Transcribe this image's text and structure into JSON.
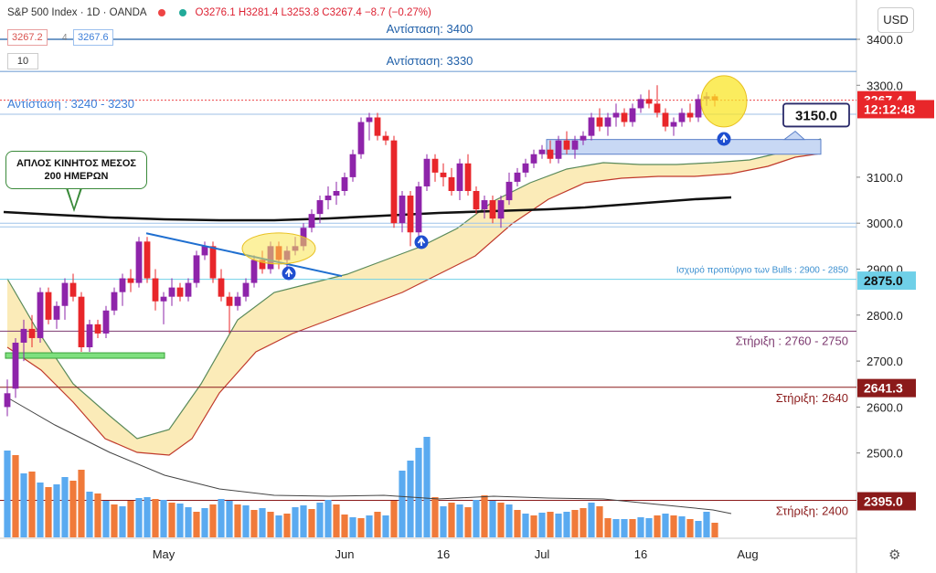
{
  "header": {
    "symbol": "S&P 500 Index · 1D · OANDA",
    "ohlc": "O3276.1  H3281.4  L3253.8  C3267.4  −8.7 (−0.27%)",
    "bid": "3267.2",
    "ask": "3267.6",
    "volume_setting": "10",
    "currency": "USD",
    "settings_icon": "gear-icon"
  },
  "chart_data": {
    "type": "candlestick",
    "timeframe": "1D",
    "ylim": [
      2370,
      3450
    ],
    "y_ticks": [
      {
        "value": 3400,
        "label": "3400.0"
      },
      {
        "value": 3300,
        "label": "3300.0"
      },
      {
        "value": 3100,
        "label": "3100.0"
      },
      {
        "value": 3000,
        "label": "3000.0"
      },
      {
        "value": 2900,
        "label": "2900.0"
      },
      {
        "value": 2800,
        "label": "2800.0"
      },
      {
        "value": 2700,
        "label": "2700.0"
      },
      {
        "value": 2600,
        "label": "2600.0"
      },
      {
        "value": 2500,
        "label": "2500.0"
      }
    ],
    "x_ticks": [
      {
        "bar": 19,
        "label": "May"
      },
      {
        "bar": 41,
        "label": "Jun"
      },
      {
        "bar": 53,
        "label": "16"
      },
      {
        "bar": 65,
        "label": "Jul"
      },
      {
        "bar": 77,
        "label": "16"
      },
      {
        "bar": 90,
        "label": "Aug"
      }
    ],
    "candles": [
      [
        2600,
        2660,
        2580,
        2630
      ],
      [
        2640,
        2750,
        2620,
        2740
      ],
      [
        2740,
        2790,
        2700,
        2770
      ],
      [
        2770,
        2800,
        2730,
        2750
      ],
      [
        2750,
        2860,
        2740,
        2850
      ],
      [
        2850,
        2860,
        2780,
        2790
      ],
      [
        2790,
        2830,
        2770,
        2820
      ],
      [
        2820,
        2880,
        2790,
        2870
      ],
      [
        2870,
        2890,
        2830,
        2840
      ],
      [
        2840,
        2850,
        2720,
        2730
      ],
      [
        2730,
        2790,
        2720,
        2780
      ],
      [
        2780,
        2790,
        2750,
        2760
      ],
      [
        2760,
        2820,
        2750,
        2810
      ],
      [
        2810,
        2860,
        2800,
        2850
      ],
      [
        2850,
        2890,
        2820,
        2880
      ],
      [
        2880,
        2900,
        2850,
        2870
      ],
      [
        2870,
        2970,
        2860,
        2960
      ],
      [
        2960,
        2970,
        2870,
        2880
      ],
      [
        2880,
        2900,
        2810,
        2830
      ],
      [
        2830,
        2850,
        2780,
        2840
      ],
      [
        2840,
        2880,
        2820,
        2860
      ],
      [
        2860,
        2870,
        2830,
        2840
      ],
      [
        2840,
        2880,
        2830,
        2870
      ],
      [
        2870,
        2940,
        2860,
        2930
      ],
      [
        2930,
        2960,
        2920,
        2950
      ],
      [
        2950,
        2960,
        2870,
        2880
      ],
      [
        2880,
        2900,
        2830,
        2840
      ],
      [
        2840,
        2850,
        2760,
        2820
      ],
      [
        2820,
        2850,
        2810,
        2840
      ],
      [
        2840,
        2880,
        2830,
        2870
      ],
      [
        2870,
        2930,
        2860,
        2920
      ],
      [
        2920,
        2940,
        2890,
        2900
      ],
      [
        2900,
        2960,
        2890,
        2950
      ],
      [
        2950,
        2960,
        2900,
        2920
      ],
      [
        2920,
        2950,
        2900,
        2940
      ],
      [
        2940,
        2970,
        2930,
        2950
      ],
      [
        2950,
        3000,
        2940,
        2990
      ],
      [
        2990,
        3030,
        2980,
        3020
      ],
      [
        3020,
        3060,
        3000,
        3050
      ],
      [
        3050,
        3080,
        3030,
        3060
      ],
      [
        3060,
        3090,
        3040,
        3070
      ],
      [
        3070,
        3110,
        3060,
        3100
      ],
      [
        3100,
        3160,
        3090,
        3150
      ],
      [
        3150,
        3230,
        3140,
        3220
      ],
      [
        3220,
        3240,
        3180,
        3230
      ],
      [
        3230,
        3240,
        3180,
        3190
      ],
      [
        3190,
        3200,
        3170,
        3180
      ],
      [
        3180,
        3190,
        2990,
        3000
      ],
      [
        3000,
        3070,
        2980,
        3060
      ],
      [
        3060,
        3070,
        2950,
        2980
      ],
      [
        2980,
        3090,
        2970,
        3080
      ],
      [
        3080,
        3150,
        3070,
        3140
      ],
      [
        3140,
        3150,
        3090,
        3110
      ],
      [
        3110,
        3130,
        3080,
        3100
      ],
      [
        3100,
        3120,
        3060,
        3070
      ],
      [
        3070,
        3140,
        3050,
        3130
      ],
      [
        3130,
        3150,
        3060,
        3070
      ],
      [
        3070,
        3080,
        3020,
        3030
      ],
      [
        3030,
        3060,
        3010,
        3050
      ],
      [
        3050,
        3060,
        3000,
        3010
      ],
      [
        3010,
        3060,
        2990,
        3050
      ],
      [
        3050,
        3110,
        3040,
        3090
      ],
      [
        3090,
        3120,
        3080,
        3110
      ],
      [
        3110,
        3140,
        3100,
        3130
      ],
      [
        3130,
        3160,
        3120,
        3150
      ],
      [
        3150,
        3170,
        3140,
        3160
      ],
      [
        3160,
        3180,
        3130,
        3140
      ],
      [
        3140,
        3190,
        3130,
        3180
      ],
      [
        3180,
        3200,
        3150,
        3160
      ],
      [
        3160,
        3190,
        3140,
        3180
      ],
      [
        3180,
        3200,
        3170,
        3190
      ],
      [
        3190,
        3240,
        3180,
        3230
      ],
      [
        3230,
        3250,
        3200,
        3210
      ],
      [
        3210,
        3240,
        3190,
        3230
      ],
      [
        3230,
        3260,
        3210,
        3240
      ],
      [
        3240,
        3250,
        3210,
        3220
      ],
      [
        3220,
        3260,
        3210,
        3250
      ],
      [
        3250,
        3280,
        3240,
        3270
      ],
      [
        3270,
        3290,
        3250,
        3260
      ],
      [
        3260,
        3300,
        3230,
        3240
      ],
      [
        3240,
        3250,
        3200,
        3210
      ],
      [
        3210,
        3230,
        3190,
        3220
      ],
      [
        3220,
        3250,
        3210,
        3240
      ],
      [
        3240,
        3260,
        3220,
        3230
      ],
      [
        3230,
        3280,
        3220,
        3270
      ],
      [
        3270,
        3285,
        3255,
        3276
      ],
      [
        3276,
        3281,
        3254,
        3267
      ]
    ],
    "volumes": [
      [
        95,
        1
      ],
      [
        90,
        0
      ],
      [
        70,
        1
      ],
      [
        72,
        0
      ],
      [
        60,
        1
      ],
      [
        55,
        0
      ],
      [
        58,
        1
      ],
      [
        66,
        1
      ],
      [
        62,
        0
      ],
      [
        74,
        0
      ],
      [
        50,
        1
      ],
      [
        48,
        0
      ],
      [
        40,
        1
      ],
      [
        36,
        0
      ],
      [
        34,
        1
      ],
      [
        40,
        0
      ],
      [
        43,
        1
      ],
      [
        44,
        1
      ],
      [
        42,
        0
      ],
      [
        41,
        1
      ],
      [
        38,
        0
      ],
      [
        37,
        1
      ],
      [
        33,
        1
      ],
      [
        28,
        0
      ],
      [
        32,
        1
      ],
      [
        36,
        0
      ],
      [
        42,
        1
      ],
      [
        40,
        1
      ],
      [
        36,
        0
      ],
      [
        35,
        1
      ],
      [
        30,
        0
      ],
      [
        32,
        1
      ],
      [
        28,
        0
      ],
      [
        24,
        1
      ],
      [
        26,
        0
      ],
      [
        33,
        1
      ],
      [
        35,
        1
      ],
      [
        31,
        0
      ],
      [
        38,
        1
      ],
      [
        41,
        1
      ],
      [
        36,
        0
      ],
      [
        25,
        0
      ],
      [
        22,
        1
      ],
      [
        21,
        0
      ],
      [
        24,
        1
      ],
      [
        28,
        0
      ],
      [
        24,
        1
      ],
      [
        40,
        0
      ],
      [
        73,
        1
      ],
      [
        84,
        1
      ],
      [
        98,
        1
      ],
      [
        110,
        1
      ],
      [
        44,
        0
      ],
      [
        34,
        1
      ],
      [
        38,
        0
      ],
      [
        36,
        1
      ],
      [
        33,
        0
      ],
      [
        41,
        1
      ],
      [
        46,
        0
      ],
      [
        40,
        1
      ],
      [
        38,
        0
      ],
      [
        36,
        1
      ],
      [
        30,
        0
      ],
      [
        26,
        1
      ],
      [
        24,
        0
      ],
      [
        27,
        1
      ],
      [
        28,
        0
      ],
      [
        26,
        1
      ],
      [
        28,
        1
      ],
      [
        30,
        0
      ],
      [
        32,
        0
      ],
      [
        38,
        1
      ],
      [
        34,
        0
      ],
      [
        21,
        0
      ],
      [
        20,
        1
      ],
      [
        20,
        1
      ],
      [
        20,
        0
      ],
      [
        22,
        1
      ],
      [
        21,
        1
      ],
      [
        24,
        0
      ],
      [
        26,
        1
      ],
      [
        24,
        0
      ],
      [
        23,
        1
      ],
      [
        20,
        0
      ],
      [
        18,
        1
      ],
      [
        28,
        1
      ],
      [
        16,
        0
      ]
    ],
    "horizontal_levels": [
      {
        "value": 3400,
        "label": "Αντίσταση: 3400"
      },
      {
        "value": 3330,
        "label": "Αντίσταση: 3330"
      },
      {
        "value": 3237,
        "label": "Αντίσταση : 3240 - 3230"
      },
      {
        "value": 2878,
        "label": "Ισχυρό προπύργιο των Bulls : 2900 - 2850"
      },
      {
        "value": 2765,
        "label": "Στήριξη : 2760 - 2750"
      },
      {
        "value": 2643,
        "label": "Στήριξη: 2640"
      },
      {
        "value": 2397,
        "label": "Στήριξη: 2400"
      }
    ],
    "axis_labels": [
      {
        "value": 3267.4,
        "label": "3267.4",
        "color": "#e8262a"
      },
      {
        "value": 3248,
        "label": "12:12:48",
        "color": "#e8262a"
      },
      {
        "value": 2875,
        "label": "2875.0",
        "color": "#6fd0e8"
      },
      {
        "value": 2641.3,
        "label": "2641.3",
        "color": "#8b1a1a"
      },
      {
        "value": 2395,
        "label": "2395.0",
        "color": "#8b1a1a"
      }
    ],
    "annotations": {
      "ma_callout": [
        "ΑΠΛΟΣ ΚΙΝΗΤΟΣ ΜΕΣΟΣ",
        "200 ΗΜΕΡΩΝ"
      ],
      "zone_label": "3150.0"
    },
    "colors": {
      "up": "#8e24aa",
      "down": "#e8262a",
      "vol_up": "#5aaaf0",
      "vol_down": "#f07a3a",
      "ma200": "#111111",
      "band_fill": "#fbe9b0",
      "band_upper": "#5a8a5a",
      "band_lower": "#c0392b",
      "resistance_line": "#1f5fa8",
      "support_line": "#8b1a1a",
      "bulls_line": "#6fd0e8"
    }
  }
}
